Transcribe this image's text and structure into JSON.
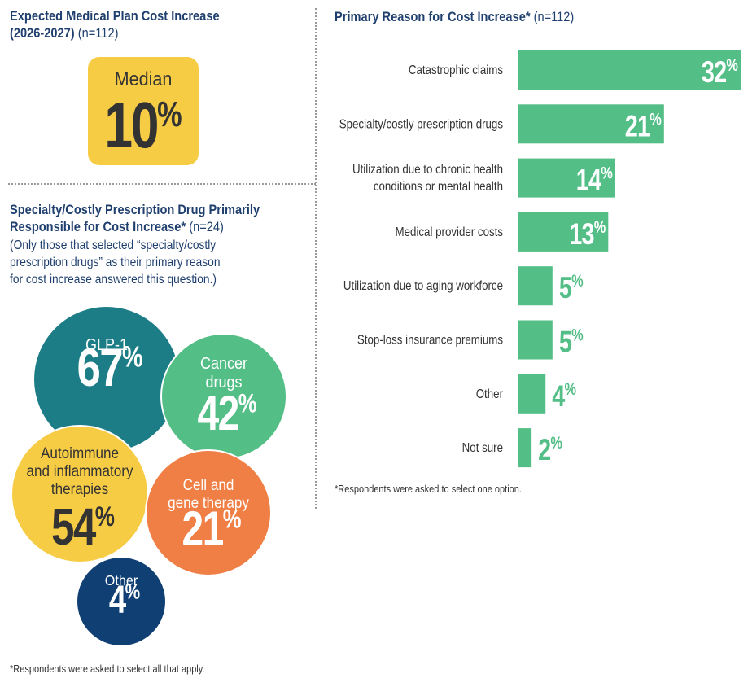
{
  "left_top": {
    "title_line1": "Expected Medical Plan Cost Increase",
    "title_line2": "(2026-2027)",
    "n_label": "(n=112)",
    "median_label": "Median",
    "median_value": "10",
    "median_unit": "%"
  },
  "left_bottom": {
    "title_line1": "Specialty/Costly Prescription Drug Primarily",
    "title_line2": "Responsible for Cost Increase*",
    "n_label": "(n=24)",
    "note_line1": "(Only those that selected “specialty/costly",
    "note_line2": "prescription drugs” as their primary reason",
    "note_line3": "for cost increase answered this question.)",
    "footnote": "*Respondents were asked to select all that apply."
  },
  "right": {
    "title": "Primary Reason for Cost Increase*",
    "n_label": "(n=112)",
    "footnote": "*Respondents were asked to select one option."
  },
  "colors": {
    "navy": "#1f3f6e",
    "yellow": "#f7cc45",
    "teal": "#1c7d86",
    "green": "#54be87",
    "orange": "#f07f45",
    "dark_navy": "#0f3f73",
    "text": "#333333"
  },
  "chart_data": [
    {
      "type": "bar",
      "orientation": "horizontal",
      "title": "Primary Reason for Cost Increase*",
      "unit": "%",
      "categories": [
        "Catastrophic claims",
        "Specialty/costly prescription drugs",
        "Utilization due to chronic health conditions or mental health",
        "Medical provider costs",
        "Utilization due to aging workforce",
        "Stop-loss insurance premiums",
        "Other",
        "Not sure"
      ],
      "category_lines": [
        [
          "Catastrophic claims"
        ],
        [
          "Specialty/costly prescription drugs"
        ],
        [
          "Utilization due to chronic health",
          "conditions or mental health"
        ],
        [
          "Medical provider costs"
        ],
        [
          "Utilization due to aging workforce"
        ],
        [
          "Stop-loss insurance premiums"
        ],
        [
          "Other"
        ],
        [
          "Not sure"
        ]
      ],
      "values": [
        32,
        21,
        14,
        13,
        5,
        5,
        4,
        2
      ],
      "xlim": [
        0,
        32
      ],
      "color": "#54be87"
    },
    {
      "type": "bubble",
      "title": "Specialty/Costly Prescription Drug Primarily Responsible for Cost Increase*",
      "unit": "%",
      "items": [
        {
          "lines": [
            "GLP-1"
          ],
          "value": 67,
          "color": "#1c7d86"
        },
        {
          "lines": [
            "Cancer",
            "drugs"
          ],
          "value": 42,
          "color": "#54be87"
        },
        {
          "lines": [
            "Autoimmune",
            "and inflammatory",
            "therapies"
          ],
          "value": 54,
          "color": "#f7cc45"
        },
        {
          "lines": [
            "Cell and",
            "gene therapy"
          ],
          "value": 21,
          "color": "#f07f45"
        },
        {
          "lines": [
            "Other"
          ],
          "value": 4,
          "color": "#0f3f73"
        }
      ]
    }
  ]
}
